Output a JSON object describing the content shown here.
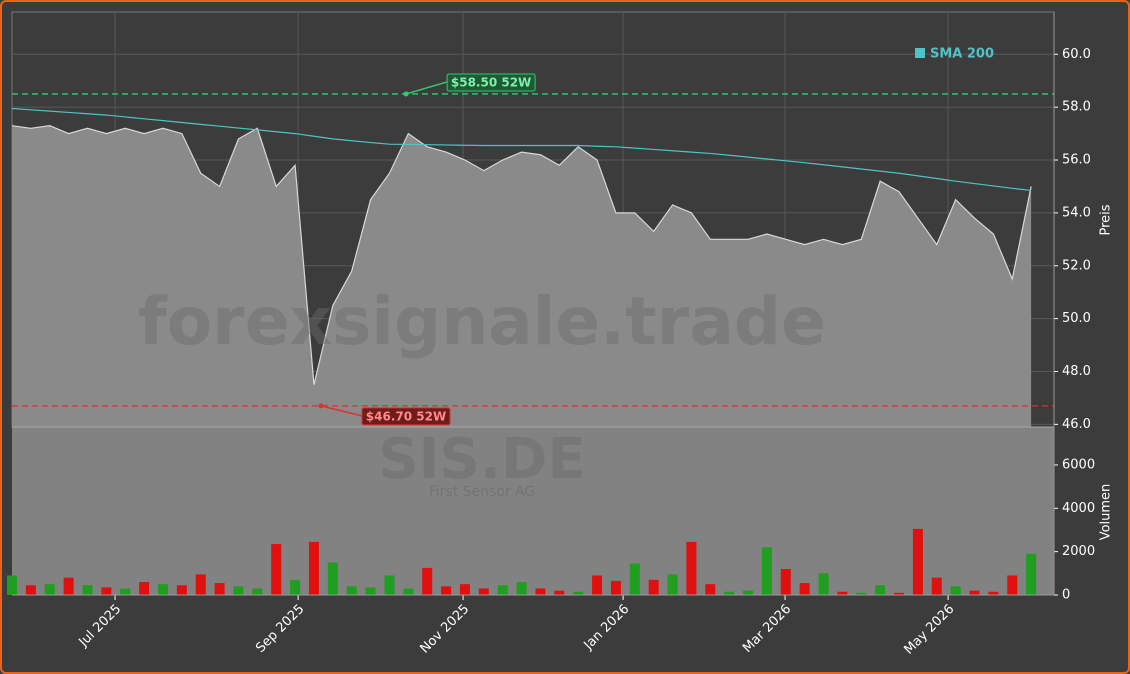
{
  "chart_data": [
    {
      "type": "area",
      "ylabel": "Preis",
      "watermark": "forexsignale.trade",
      "xlim": [
        0,
        55
      ],
      "ylim": [
        45.9,
        61.6
      ],
      "yticks": [
        {
          "value": 46,
          "label": "46.0"
        },
        {
          "value": 48,
          "label": "48.0"
        },
        {
          "value": 50,
          "label": "50.0"
        },
        {
          "value": 52,
          "label": "52.0"
        },
        {
          "value": 54,
          "label": "54.0"
        },
        {
          "value": 56,
          "label": "56.0"
        },
        {
          "value": 58,
          "label": "58.0"
        },
        {
          "value": 60,
          "label": "60.0"
        }
      ],
      "grid": true,
      "legend": "upper right",
      "series": [
        {
          "color": "#8a8a8a",
          "values": [
            57.3,
            57.2,
            57.3,
            57.0,
            57.2,
            57.0,
            57.2,
            57.0,
            57.2,
            57.0,
            55.5,
            55.0,
            56.8,
            57.2,
            55.0,
            55.8,
            47.5,
            50.5,
            51.8,
            54.5,
            55.5,
            57.0,
            56.5,
            56.3,
            56.0,
            55.6,
            56.0,
            56.3,
            56.2,
            55.8,
            56.5,
            56.0,
            54.0,
            54.0,
            53.3,
            54.3,
            54.0,
            53.0,
            53.0,
            53.0,
            53.2,
            53.0,
            52.8,
            53.0,
            52.8,
            53.0,
            55.2,
            54.8,
            53.8,
            52.8,
            54.5,
            53.8,
            53.2,
            51.5,
            55.0
          ]
        },
        {
          "name": "SMA 200",
          "color": "#4fc3c8",
          "values": [
            57.95,
            57.9,
            57.85,
            57.8,
            57.75,
            57.7,
            57.63,
            57.56,
            57.49,
            57.42,
            57.35,
            57.28,
            57.21,
            57.14,
            57.07,
            57.0,
            56.9,
            56.8,
            56.73,
            56.66,
            56.6,
            56.59,
            56.58,
            56.57,
            56.56,
            56.55,
            56.55,
            56.55,
            56.55,
            56.55,
            56.55,
            56.52,
            56.5,
            56.45,
            56.4,
            56.35,
            56.3,
            56.25,
            56.18,
            56.11,
            56.04,
            55.97,
            55.9,
            55.82,
            55.74,
            55.66,
            55.58,
            55.5,
            55.4,
            55.3,
            55.2,
            55.11,
            55.02,
            54.93,
            54.85
          ]
        }
      ],
      "annotations": [
        {
          "label": "$58.50 52W",
          "value": 58.5,
          "x": 20.67,
          "color": "#2ecc71"
        },
        {
          "label": "$46.70 52W",
          "value": 46.7,
          "x": 16.16,
          "color": "#e03030"
        }
      ]
    },
    {
      "type": "bar",
      "ylabel": "Volumen",
      "watermark": "SIS.DE",
      "subtitle": "First Sensor AG",
      "xlim": [
        0,
        55
      ],
      "ylim": [
        0,
        7750
      ],
      "yticks": [
        0,
        2000,
        4000,
        6000
      ],
      "xticks": [
        {
          "value": 5.46,
          "label": "Jul 2025"
        },
        {
          "value": 15.16,
          "label": "Sep 2025"
        },
        {
          "value": 23.9,
          "label": "Nov 2025"
        },
        {
          "value": 32.38,
          "label": "Jan 2026"
        },
        {
          "value": 40.96,
          "label": "Mar 2026"
        },
        {
          "value": 49.6,
          "label": "May 2026"
        }
      ],
      "up_color": "#1f9e1f",
      "down_color": "#e01010",
      "values": [
        900,
        450,
        500,
        800,
        450,
        350,
        300,
        600,
        500,
        450,
        950,
        550,
        400,
        300,
        2350,
        700,
        2450,
        1500,
        400,
        350,
        900,
        300,
        1250,
        400,
        500,
        300,
        450,
        600,
        300,
        200,
        150,
        900,
        650,
        1450,
        700,
        950,
        2450,
        500,
        150,
        200,
        2200,
        1200,
        550,
        1000,
        150,
        100,
        450,
        100,
        3050,
        800,
        400,
        200,
        150,
        900,
        1900
      ]
    }
  ]
}
